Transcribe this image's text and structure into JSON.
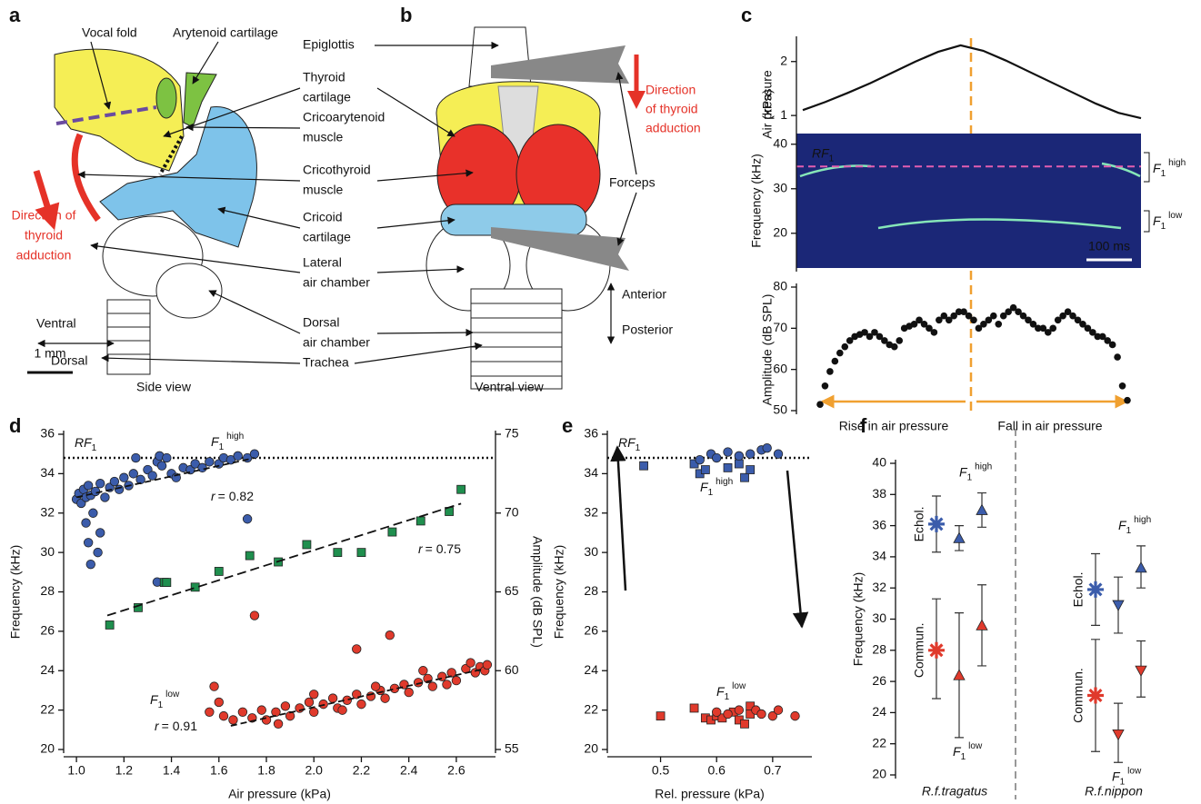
{
  "panel_labels": [
    "a",
    "b",
    "c",
    "d",
    "e",
    "f"
  ],
  "diagram_a": {
    "vocal_fold": "Vocal fold",
    "arytenoid": "Arytenoid cartilage",
    "direction": [
      "Direction of",
      "thyroid",
      "adduction"
    ],
    "ventral": "Ventral",
    "dorsal": "Dorsal",
    "scale": "1 mm",
    "caption": "Side view"
  },
  "shared_labels": [
    [
      "Thyroid",
      "cartilage"
    ],
    [
      "Cricoarytenoid",
      "muscle"
    ],
    [
      "Cricothyroid",
      "muscle"
    ],
    [
      "Cricoid",
      "cartilage"
    ],
    [
      "Lateral",
      "air chamber"
    ],
    [
      "Dorsal",
      "air chamber"
    ],
    [
      "Trachea"
    ]
  ],
  "diagram_b": {
    "epiglottis": "Epiglottis",
    "direction": [
      "Direction",
      "of thyroid",
      "adduction"
    ],
    "forceps": "Forceps",
    "anterior": "Anterior",
    "posterior": "Posterior",
    "caption": "Ventral view"
  },
  "chart_data": [
    {
      "type": "line",
      "ylabel": [
        "Air pressure",
        "(kPa)"
      ],
      "color": "#111111",
      "values": [
        1.1,
        1.25,
        1.42,
        1.6,
        1.8,
        2.0,
        2.18,
        2.3,
        2.2,
        2.02,
        1.82,
        1.62,
        1.42,
        1.22,
        1.05,
        0.95
      ],
      "ylim": [
        0.8,
        2.4
      ],
      "yticks": [
        1,
        2
      ]
    },
    {
      "type": "spectrogram",
      "ylabel": "Frequency (kHz)",
      "color": "#1b2777",
      "ylim": [
        12.2,
        42.4
      ],
      "yticks": [
        20,
        30,
        40
      ],
      "reference": {
        "value": 35,
        "color": "#e35fb0",
        "label": {
          "base": "RF",
          "sub": "1"
        }
      },
      "annotations": [
        {
          "base": "F",
          "sub": "1",
          "sup": "high"
        },
        {
          "base": "F",
          "sub": "1",
          "sup": "low"
        }
      ],
      "scale_bar": "100 ms"
    },
    {
      "type": "scatter",
      "ylabel": "Amplitude (dB SPL)",
      "color": "#111111",
      "values": [
        51.5,
        56,
        59.5,
        62,
        64,
        65.5,
        67,
        68,
        68.5,
        69,
        68,
        69,
        68,
        67,
        66,
        65.5,
        67,
        70,
        70.5,
        71,
        72,
        71,
        70,
        69,
        72,
        73,
        72,
        73,
        74,
        74,
        73,
        72,
        70,
        71,
        72,
        73,
        71,
        73,
        74,
        75,
        74,
        73,
        72,
        71,
        70,
        70,
        69,
        70,
        72,
        73,
        74,
        73,
        72,
        71,
        70,
        69,
        68,
        68,
        67,
        66,
        63,
        56,
        52.5
      ],
      "ylim": [
        50,
        80
      ],
      "yticks": [
        50,
        60,
        70,
        80
      ],
      "annotations": [
        "Rise in air pressure",
        "Fall in air pressure"
      ]
    },
    {
      "type": "scatter",
      "xlabel": "Air pressure (kPa)",
      "ylabel": "Frequency (kHz)",
      "y2label": "Amplitude (dB SPL)",
      "xlim": [
        0.946,
        2.765
      ],
      "xticks": [
        {
          "value": 1,
          "label": "1.0"
        },
        1.2,
        1.4,
        1.6,
        1.8,
        {
          "value": 2,
          "label": "2.0"
        },
        2.2,
        2.4,
        2.6
      ],
      "ylim": [
        20,
        36
      ],
      "yticks": [
        20,
        22,
        24,
        26,
        28,
        30,
        32,
        34,
        36
      ],
      "y2lim": [
        55,
        75
      ],
      "y2ticks": [
        55,
        60,
        65,
        70,
        75
      ],
      "reference": {
        "value": 34.8,
        "label": {
          "base": "RF",
          "sub": "1"
        }
      },
      "labels": [
        {
          "base": "F",
          "sub": "1",
          "sup": "high"
        },
        {
          "base": "F",
          "sub": "1",
          "sup": "low"
        }
      ],
      "r_labels": [
        {
          "var": "r",
          "text": "= 0.82"
        },
        {
          "var": "r",
          "text": "= 0.75"
        },
        {
          "var": "r",
          "text": "= 0.91"
        }
      ],
      "series": [
        {
          "color": "#3b5cab",
          "marker": "circle",
          "x": [
            1.0,
            1.01,
            1.02,
            1.03,
            1.04,
            1.05,
            1.06,
            1.08,
            1.1,
            1.12,
            1.14,
            1.16,
            1.18,
            1.2,
            1.22,
            1.24,
            1.25,
            1.27,
            1.3,
            1.32,
            1.34,
            1.35,
            1.36,
            1.38,
            1.4,
            1.42,
            1.45,
            1.48,
            1.5,
            1.53,
            1.56,
            1.6,
            1.62,
            1.65,
            1.68,
            1.72,
            1.75,
            1.04,
            1.05,
            1.06,
            1.09,
            1.1,
            1.07,
            1.72,
            1.34
          ],
          "values": [
            32.7,
            33.0,
            32.5,
            33.2,
            32.8,
            33.4,
            32.9,
            33.1,
            33.5,
            32.8,
            33.3,
            33.6,
            33.2,
            33.8,
            33.4,
            34.0,
            34.8,
            33.7,
            34.2,
            33.9,
            34.6,
            34.9,
            34.4,
            34.8,
            34.0,
            33.8,
            34.3,
            34.2,
            34.5,
            34.3,
            34.6,
            34.5,
            34.8,
            34.7,
            34.9,
            34.8,
            35.0,
            31.5,
            30.5,
            29.4,
            30.0,
            31.0,
            32.0,
            31.7,
            28.5
          ],
          "fit": {
            "x": [
              1.0,
              1.75
            ],
            "values": [
              32.8,
              34.8
            ]
          }
        },
        {
          "color": "#1f8f4e",
          "marker": "square",
          "axis": "y2",
          "x": [
            1.14,
            1.26,
            1.37,
            1.38,
            1.5,
            1.6,
            1.73,
            1.85,
            1.97,
            2.1,
            2.2,
            2.33,
            2.45,
            2.57,
            2.62
          ],
          "values": [
            62.9,
            64.0,
            65.6,
            65.6,
            65.3,
            66.3,
            67.3,
            66.9,
            68.0,
            67.5,
            67.5,
            68.8,
            69.5,
            70.1,
            71.5
          ],
          "fit": {
            "x": [
              1.13,
              2.62
            ],
            "values": [
              63.5,
              70.6
            ]
          }
        },
        {
          "color": "#e03a2c",
          "marker": "circle",
          "x": [
            1.62,
            1.66,
            1.7,
            1.74,
            1.78,
            1.8,
            1.84,
            1.88,
            1.9,
            1.94,
            1.98,
            2.0,
            2.04,
            2.08,
            2.1,
            2.14,
            2.18,
            2.2,
            2.24,
            2.28,
            2.3,
            2.34,
            2.38,
            2.4,
            2.44,
            2.48,
            2.5,
            2.54,
            2.58,
            2.6,
            2.64,
            2.66,
            2.68,
            2.7,
            2.72,
            2.73,
            1.58,
            1.6,
            1.56,
            1.75,
            2.18,
            2.32,
            1.85,
            2.0,
            2.12,
            2.26,
            2.46,
            2.56
          ],
          "values": [
            21.7,
            21.5,
            21.9,
            21.6,
            22.0,
            21.5,
            21.9,
            22.2,
            21.7,
            22.1,
            22.4,
            21.9,
            22.3,
            22.6,
            22.1,
            22.5,
            22.8,
            22.3,
            22.7,
            23.0,
            22.6,
            23.1,
            23.3,
            22.9,
            23.4,
            23.6,
            23.2,
            23.7,
            23.9,
            23.5,
            24.1,
            24.4,
            23.9,
            24.2,
            24.0,
            24.3,
            23.2,
            22.4,
            21.9,
            26.8,
            25.1,
            25.8,
            21.3,
            22.8,
            22.0,
            23.2,
            24.0,
            23.3
          ],
          "fit": {
            "x": [
              1.65,
              2.72
            ],
            "values": [
              21.2,
              24.1
            ]
          }
        }
      ]
    },
    {
      "type": "scatter",
      "xlabel": "Rel. pressure (kPa)",
      "ylabel": "Frequency (kHz)",
      "xlim": [
        0.405,
        0.77
      ],
      "xticks": [
        0.5,
        0.6,
        0.7
      ],
      "ylim": [
        20,
        36
      ],
      "yticks": [
        20,
        22,
        24,
        26,
        28,
        30,
        32,
        34,
        36
      ],
      "reference": {
        "value": 34.8,
        "label": {
          "base": "RF",
          "sub": "1"
        }
      },
      "labels": [
        {
          "base": "F",
          "sub": "1",
          "sup": "high"
        },
        {
          "base": "F",
          "sub": "1",
          "sup": "low"
        }
      ],
      "series": [
        {
          "color": "#3b5cab",
          "marker": "square",
          "x": [
            0.47,
            0.56,
            0.57,
            0.58,
            0.62,
            0.64,
            0.65,
            0.66
          ],
          "values": [
            34.4,
            34.5,
            34.0,
            34.2,
            34.3,
            34.5,
            33.8,
            34.2
          ]
        },
        {
          "color": "#3b5cab",
          "marker": "circle",
          "x": [
            0.57,
            0.59,
            0.6,
            0.62,
            0.64,
            0.66,
            0.68,
            0.69,
            0.71
          ],
          "values": [
            34.7,
            35.0,
            34.8,
            35.1,
            34.9,
            35.0,
            35.2,
            35.3,
            35.0
          ]
        },
        {
          "color": "#e03a2c",
          "marker": "square",
          "x": [
            0.5,
            0.56,
            0.58,
            0.59,
            0.6,
            0.61,
            0.63,
            0.64,
            0.65,
            0.66,
            0.66
          ],
          "values": [
            21.7,
            22.1,
            21.6,
            21.5,
            21.7,
            21.6,
            21.9,
            21.5,
            21.3,
            22.2,
            21.8
          ]
        },
        {
          "color": "#e03a2c",
          "marker": "circle",
          "x": [
            0.6,
            0.62,
            0.64,
            0.67,
            0.68,
            0.7,
            0.71,
            0.74
          ],
          "values": [
            21.9,
            21.8,
            22.0,
            22.0,
            21.8,
            21.7,
            22.0,
            21.7
          ]
        }
      ]
    },
    {
      "type": "errorbar",
      "ylabel": "Frequency (kHz)",
      "ylim": [
        20,
        40
      ],
      "yticks": [
        20,
        22,
        24,
        26,
        28,
        30,
        32,
        34,
        36,
        38,
        40
      ],
      "groups": [
        {
          "name": "R.f.tragatus",
          "labels": {
            "echol": "Echol.",
            "commun": "Commun.",
            "high": {
              "base": "F",
              "sub": "1",
              "sup": "high"
            },
            "low": {
              "base": "F",
              "sub": "1",
              "sup": "low"
            }
          },
          "points": [
            {
              "color": "#3b5cab",
              "marker": "star",
              "value": 36.1,
              "lower": 34.3,
              "upper": 37.9
            },
            {
              "color": "#e03a2c",
              "marker": "star",
              "value": 28.0,
              "lower": 24.9,
              "upper": 31.3
            },
            {
              "color": "#3b5cab",
              "marker": "triangle-up",
              "value": 35.2,
              "lower": 34.4,
              "upper": 36.0
            },
            {
              "color": "#e03a2c",
              "marker": "triangle-up",
              "value": 26.4,
              "lower": 22.4,
              "upper": 30.4
            },
            {
              "color": "#3b5cab",
              "marker": "triangle-up",
              "value": 37.0,
              "lower": 35.9,
              "upper": 38.1
            },
            {
              "color": "#e03a2c",
              "marker": "triangle-up",
              "value": 29.6,
              "lower": 27.0,
              "upper": 32.2
            }
          ]
        },
        {
          "name": "R.f.nippon",
          "labels": {
            "echol": "Echol.",
            "commun": "Commun.",
            "high": {
              "base": "F",
              "sub": "1",
              "sup": "high"
            },
            "low": {
              "base": "F",
              "sub": "1",
              "sup": "low"
            }
          },
          "points": [
            {
              "color": "#3b5cab",
              "marker": "star",
              "value": 31.9,
              "lower": 29.6,
              "upper": 34.2
            },
            {
              "color": "#e03a2c",
              "marker": "star",
              "value": 25.1,
              "lower": 21.5,
              "upper": 28.7
            },
            {
              "color": "#3b5cab",
              "marker": "triangle-down",
              "value": 30.9,
              "lower": 29.1,
              "upper": 32.7
            },
            {
              "color": "#e03a2c",
              "marker": "triangle-down",
              "value": 22.6,
              "lower": 20.8,
              "upper": 24.6
            },
            {
              "color": "#3b5cab",
              "marker": "triangle-up",
              "value": 33.3,
              "lower": 32.0,
              "upper": 34.7
            },
            {
              "color": "#e03a2c",
              "marker": "triangle-down",
              "value": 26.7,
              "lower": 25.0,
              "upper": 28.6
            }
          ]
        }
      ]
    }
  ]
}
